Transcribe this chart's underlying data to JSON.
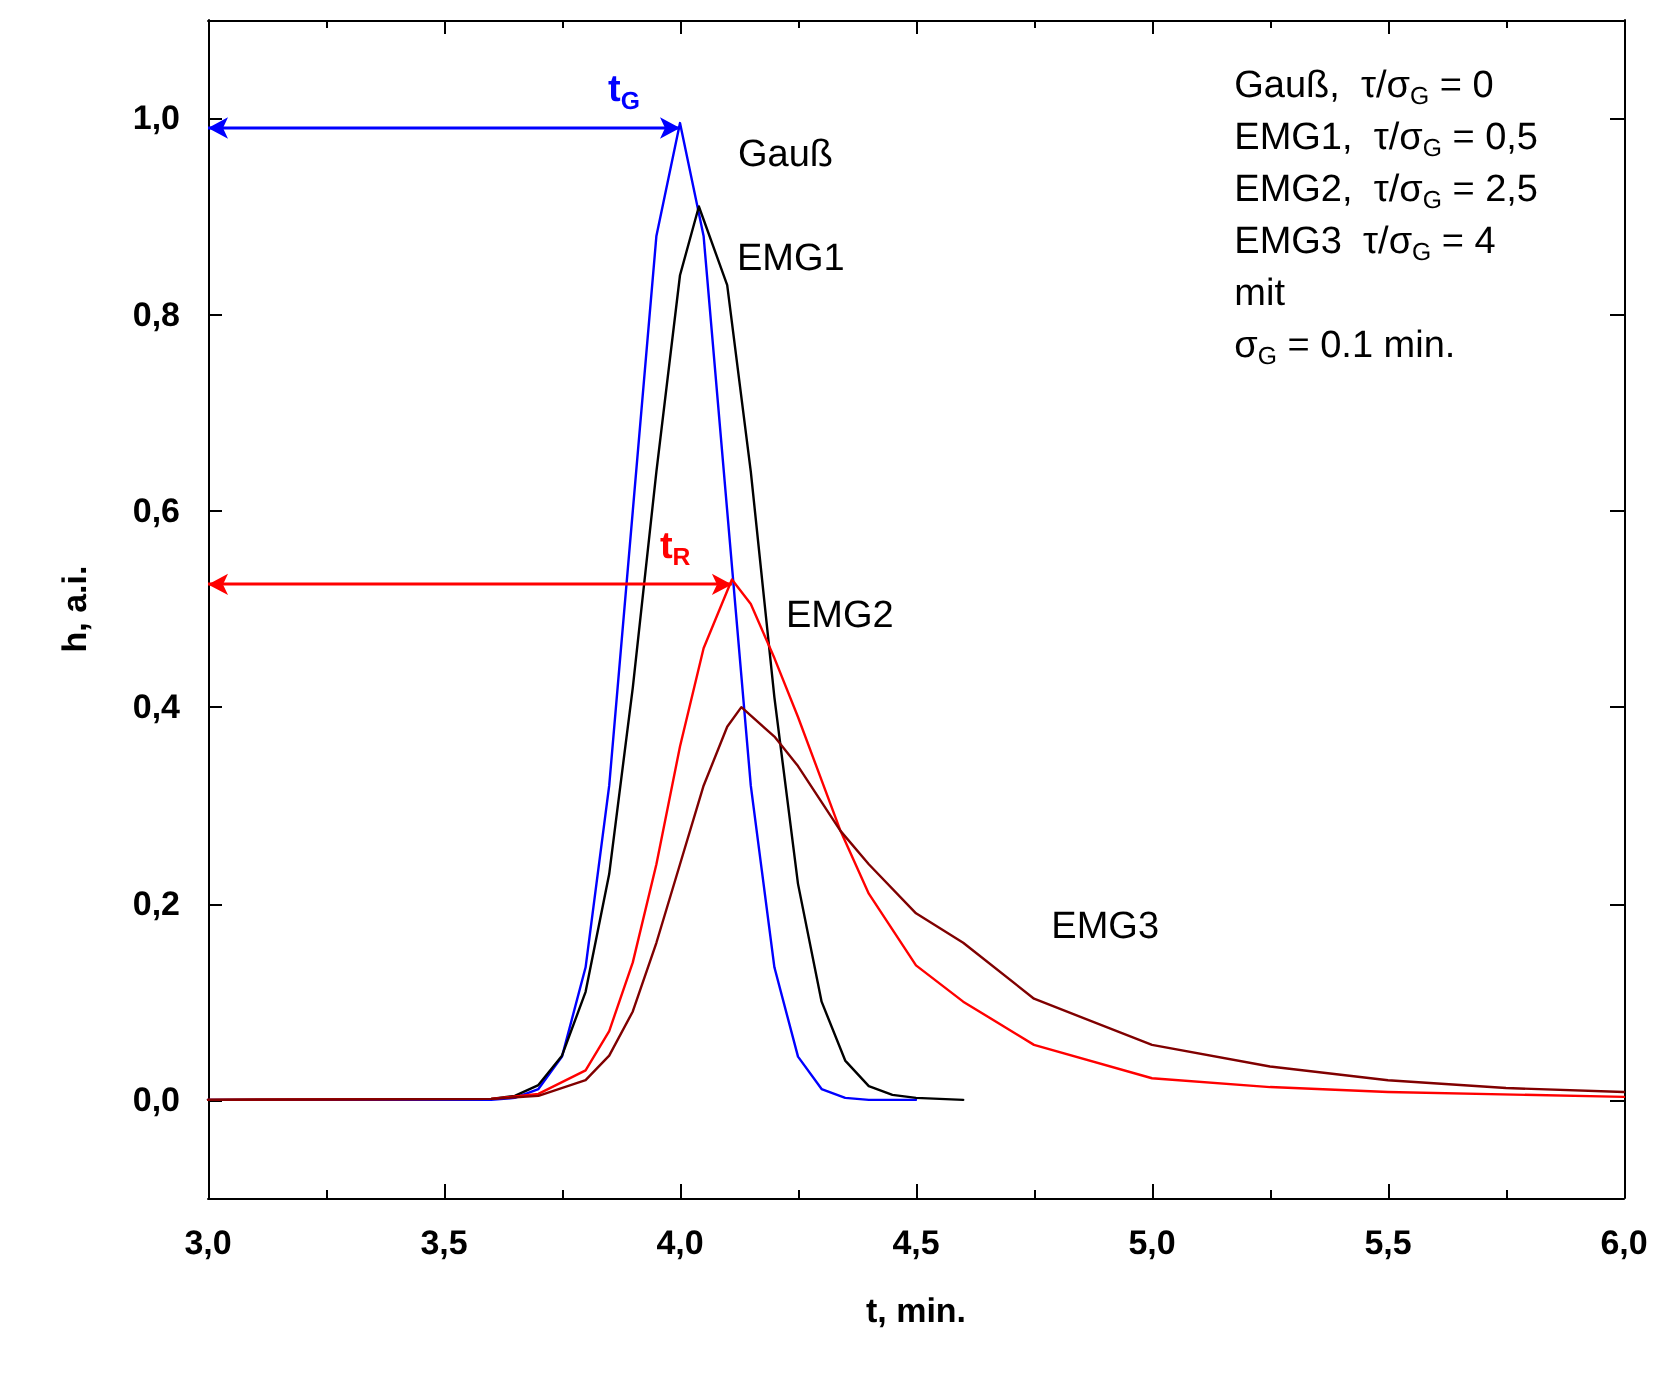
{
  "chart_data": {
    "type": "line",
    "xlabel": "t, min.",
    "ylabel": "h, a.i.",
    "xlim": [
      3.0,
      6.0
    ],
    "xticks": [
      {
        "value": 3.0,
        "label": "3,0"
      },
      {
        "value": 3.5,
        "label": "3,5"
      },
      {
        "value": 4.0,
        "label": "4,0"
      },
      {
        "value": 4.5,
        "label": "4,5"
      },
      {
        "value": 5.0,
        "label": "5,0"
      },
      {
        "value": 5.5,
        "label": "5,5"
      },
      {
        "value": 6.0,
        "label": "6,0"
      }
    ],
    "ylim": [
      -0.1,
      1.1
    ],
    "yticks": [
      {
        "value": 0,
        "label": "0,0"
      },
      {
        "value": 0.2,
        "label": "0,2"
      },
      {
        "value": 0.4,
        "label": "0,4"
      },
      {
        "value": 0.6,
        "label": "0,6"
      },
      {
        "value": 0.8,
        "label": "0,8"
      },
      {
        "value": 1.0,
        "label": "1,0"
      }
    ],
    "grid": false,
    "legend": false,
    "marker": "none",
    "line_style": "solid",
    "series": [
      {
        "name": "Gauß",
        "color": "#0000ff",
        "x": [
          3.0,
          3.6,
          3.65,
          3.7,
          3.75,
          3.8,
          3.85,
          3.9,
          3.95,
          4.0,
          4.05,
          4.1,
          4.15,
          4.2,
          4.25,
          4.3,
          4.35,
          4.4,
          4.5
        ],
        "values": [
          0,
          0,
          0.002,
          0.011,
          0.044,
          0.135,
          0.32,
          0.6,
          0.88,
          0.995,
          0.88,
          0.6,
          0.32,
          0.135,
          0.044,
          0.011,
          0.002,
          0,
          0
        ]
      },
      {
        "name": "EMG1",
        "color": "#000000",
        "x": [
          3.0,
          3.6,
          3.65,
          3.7,
          3.75,
          3.8,
          3.85,
          3.9,
          3.95,
          4.0,
          4.04,
          4.1,
          4.15,
          4.2,
          4.25,
          4.3,
          4.35,
          4.4,
          4.45,
          4.5,
          4.6
        ],
        "values": [
          0,
          0.001,
          0.004,
          0.015,
          0.045,
          0.11,
          0.23,
          0.42,
          0.64,
          0.84,
          0.91,
          0.83,
          0.64,
          0.41,
          0.22,
          0.1,
          0.04,
          0.014,
          0.005,
          0.002,
          0
        ]
      },
      {
        "name": "EMG2",
        "color": "#ff0000",
        "x": [
          3.0,
          3.6,
          3.7,
          3.8,
          3.85,
          3.9,
          3.95,
          4.0,
          4.05,
          4.11,
          4.15,
          4.2,
          4.25,
          4.34,
          4.4,
          4.5,
          4.6,
          4.75,
          5.0,
          5.25,
          5.5,
          6.0
        ],
        "values": [
          0,
          0.001,
          0.006,
          0.03,
          0.07,
          0.14,
          0.24,
          0.36,
          0.46,
          0.53,
          0.505,
          0.45,
          0.39,
          0.274,
          0.21,
          0.137,
          0.1,
          0.056,
          0.022,
          0.013,
          0.008,
          0.003
        ]
      },
      {
        "name": "EMG3",
        "color": "#800000",
        "x": [
          3.0,
          3.6,
          3.7,
          3.8,
          3.85,
          3.9,
          3.95,
          4.0,
          4.05,
          4.1,
          4.13,
          4.2,
          4.25,
          4.34,
          4.4,
          4.5,
          4.6,
          4.75,
          5.0,
          5.25,
          5.5,
          5.75,
          6.0
        ],
        "values": [
          0,
          0.001,
          0.004,
          0.02,
          0.045,
          0.09,
          0.16,
          0.24,
          0.32,
          0.38,
          0.4,
          0.37,
          0.34,
          0.274,
          0.24,
          0.19,
          0.16,
          0.103,
          0.056,
          0.034,
          0.02,
          0.012,
          0.008
        ]
      }
    ],
    "annotations": [
      {
        "text": "t$_{G}$",
        "x": 4.0,
        "y": 0.99
      },
      {
        "text": "t$_{R}$",
        "x": 4.11,
        "y": 0.525
      },
      "Gauß,  τ/σ$_{G}$ = 0",
      "EMG1,  τ/σ$_{G}$ = 0,5",
      "EMG2,  τ/σ$_{G}$ = 2,5",
      "EMG3  τ/σ$_{G}$ = 4",
      "mit",
      "σ$_{G}$ = 0.1 min."
    ]
  }
}
